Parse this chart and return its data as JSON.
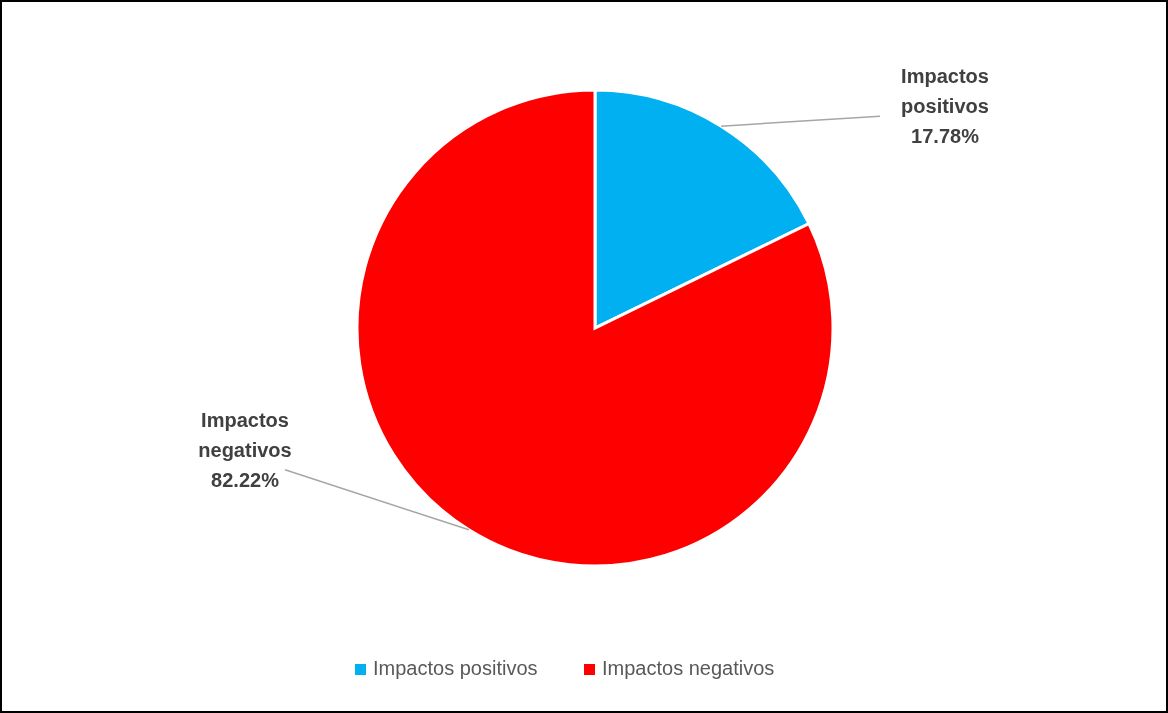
{
  "chart_data": {
    "type": "pie",
    "categories": [
      "Impactos positivos",
      "Impactos negativos"
    ],
    "values": [
      17.78,
      82.22
    ],
    "colors": [
      "#00b0f0",
      "#ff0000"
    ],
    "value_labels": [
      "17.78%",
      "82.22%"
    ],
    "legend": "bottom"
  }
}
